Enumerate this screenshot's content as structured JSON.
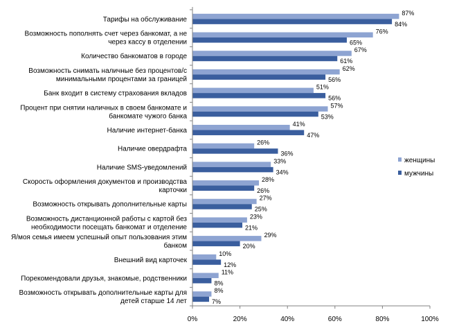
{
  "chart_data": {
    "type": "bar",
    "orientation": "horizontal",
    "categories": [
      "Тарифы на обслуживание",
      "Возможность пополнять счет через банкомат, а не через кассу в отделении",
      "Количество банкоматов в городе",
      "Возможность снимать наличные без процентов/с минимальными процентами за границей",
      "Банк входит в систему страхования вкладов",
      "Процент при снятии наличных в своем банкомате и банкомате чужого банка",
      "Наличие интернет-банка",
      "Наличие овердрафта",
      "Наличие SMS-уведомлений",
      "Скорость оформления документов и производства карточки",
      "Возможность открывать дополнительные карты",
      "Возможность дистанционной работы с картой без необходимости посещать банкомат и отделение",
      "Я/моя семья имеем успешный опыт пользования этим банком",
      "Внешний вид карточек",
      "Порекомендовали друзья, знакомые, родственники",
      "Возможность открывать дополнительные карты для детей старше 14 лет"
    ],
    "category_lines": [
      [
        "Тарифы на обслуживание"
      ],
      [
        "Возможность пополнять счет через банкомат, а не",
        "через кассу в отделении"
      ],
      [
        "Количество банкоматов в городе"
      ],
      [
        "Возможность снимать наличные без процентов/с",
        "минимальными процентами за границей"
      ],
      [
        "Банк входит в систему страхования вкладов"
      ],
      [
        "Процент при снятии наличных в своем банкомате и",
        "банкомате чужого банка"
      ],
      [
        "Наличие интернет-банка"
      ],
      [
        "Наличие овердрафта"
      ],
      [
        "Наличие SMS-уведомлений"
      ],
      [
        "Скорость оформления документов и производства",
        "карточки"
      ],
      [
        "Возможность открывать дополнительные карты"
      ],
      [
        "Возможность дистанционной работы с картой без",
        "необходимости посещать банкомат и отделение"
      ],
      [
        "Я/моя семья имеем успешный опыт пользования этим",
        "банком"
      ],
      [
        "Внешний вид карточек"
      ],
      [
        "Порекомендовали друзья, знакомые, родственники"
      ],
      [
        "Возможность открывать дополнительные карты для",
        "детей старше 14 лет"
      ]
    ],
    "series": [
      {
        "name": "женщины",
        "color": "#8EA4D2",
        "values": [
          87,
          76,
          67,
          62,
          51,
          57,
          41,
          26,
          33,
          28,
          27,
          23,
          29,
          10,
          11,
          8
        ]
      },
      {
        "name": "мужчины",
        "color": "#3A5E9E",
        "values": [
          84,
          65,
          61,
          56,
          56,
          53,
          47,
          36,
          34,
          26,
          25,
          21,
          20,
          12,
          8,
          7
        ]
      }
    ],
    "value_suffix": "%",
    "xlim": [
      0,
      100
    ],
    "xticks": [
      "0%",
      "20%",
      "40%",
      "60%",
      "80%",
      "100%"
    ],
    "grid": false,
    "legend_position": "right"
  }
}
